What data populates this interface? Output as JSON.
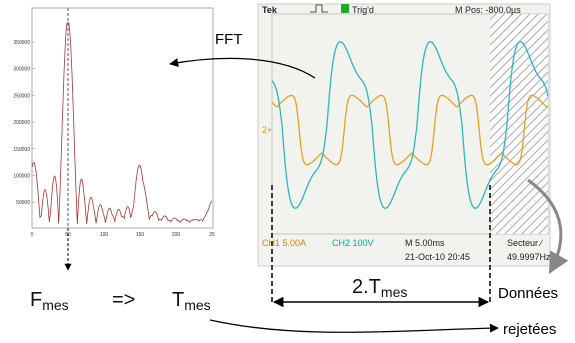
{
  "fft": {
    "label": "FFT",
    "y_axis_ticks": [
      350000,
      300000,
      250000,
      200000,
      150000,
      100000,
      50000
    ],
    "x_axis_ticks": [
      "0",
      "50",
      "100",
      "150",
      "200",
      "25"
    ]
  },
  "scope": {
    "brand": "Tek",
    "trigger": "Trig'd",
    "position": "M Pos: -800.0µs",
    "ch1": "CH1 5.00A",
    "ch2": "CH2 100V",
    "timebase": "M 5.00ms",
    "date": "21-Oct-10 20:45",
    "source": "Secteur ∕",
    "frequency": "49.9997Hz",
    "ch2_marker": "2+"
  },
  "annotations": {
    "f_symbol": "F",
    "f_subscript": "mes",
    "arrow": "=>",
    "t_symbol": "T",
    "t_subscript": "mes",
    "period_prefix": "2.T",
    "period_subscript": "mes",
    "discarded_line1": "Données",
    "discarded_line2": "rejetées"
  }
}
